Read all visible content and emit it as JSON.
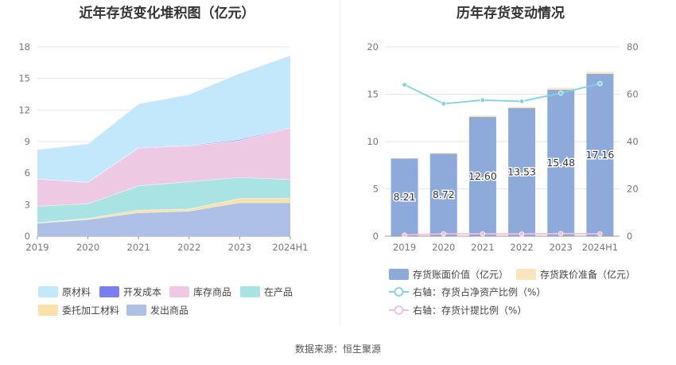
{
  "titles": {
    "left": "近年存货变化堆积图（亿元）",
    "right": "历年存货变动情况"
  },
  "source": "数据来源：恒生聚源",
  "chart_data": [
    {
      "type": "area",
      "stacked": true,
      "title": "近年存货变化堆积图（亿元）",
      "categories": [
        "2019",
        "2020",
        "2021",
        "2022",
        "2023",
        "2024H1"
      ],
      "ylim": [
        0,
        18
      ],
      "yticks": [
        0,
        3,
        6,
        9,
        12,
        15,
        18
      ],
      "grid": true,
      "legend_position": "bottom",
      "series": [
        {
          "name": "发出商品",
          "color": "#aec0e6",
          "values": [
            1.25,
            1.6,
            2.25,
            2.4,
            3.2,
            3.2
          ]
        },
        {
          "name": "委托加工材料",
          "color": "#fbe1a7",
          "values": [
            0.05,
            0.1,
            0.25,
            0.2,
            0.4,
            0.4
          ]
        },
        {
          "name": "在产品",
          "color": "#a9e3e4",
          "values": [
            1.55,
            1.4,
            2.3,
            2.6,
            2.0,
            1.8
          ]
        },
        {
          "name": "库存商品",
          "color": "#eec9e3",
          "values": [
            2.6,
            2.05,
            3.6,
            3.4,
            3.5,
            4.9
          ]
        },
        {
          "name": "开发成本",
          "color": "#7b7df2",
          "values": [
            0,
            0,
            0.05,
            0.05,
            0.1,
            0.05
          ]
        },
        {
          "name": "原材料",
          "color": "#c3e8fb",
          "values": [
            2.8,
            3.65,
            4.15,
            4.85,
            6.3,
            6.85
          ]
        }
      ],
      "legend_order": [
        "原材料",
        "开发成本",
        "库存商品",
        "在产品",
        "委托加工材料",
        "发出商品"
      ]
    },
    {
      "type": "bar",
      "title": "历年存货变动情况",
      "categories": [
        "2019",
        "2020",
        "2021",
        "2022",
        "2023",
        "2024H1"
      ],
      "ylim": [
        0,
        20
      ],
      "yticks": [
        0,
        5,
        10,
        15,
        20
      ],
      "y2lim": [
        0,
        80
      ],
      "y2ticks": [
        0,
        20,
        40,
        60,
        80
      ],
      "grid": true,
      "legend_position": "bottom",
      "series": [
        {
          "name": "存货账面价值（亿元）",
          "kind": "bar",
          "color": "#8eaadb",
          "values": [
            8.21,
            8.72,
            12.6,
            13.53,
            15.48,
            17.16
          ],
          "labels": [
            "8.21",
            "8.72",
            "12.60",
            "13.53",
            "15.48",
            "17.16"
          ]
        },
        {
          "name": "存货跌价准备（亿元）",
          "kind": "bar-stack",
          "color": "#fbe5bd",
          "values": [
            0.05,
            0.1,
            0.15,
            0.15,
            0.2,
            0.2
          ]
        },
        {
          "name": "右轴：存货占净资产比例（%）",
          "kind": "line",
          "axis": "right",
          "color": "#7fd3dd",
          "values": [
            64,
            56,
            57.5,
            57,
            60.5,
            64.5
          ]
        },
        {
          "name": "右轴：存货计提比例（%）",
          "kind": "line",
          "axis": "right",
          "color": "#f3bde0",
          "values": [
            0.5,
            1.0,
            1.0,
            0.9,
            1.1,
            1.0
          ]
        }
      ]
    }
  ]
}
